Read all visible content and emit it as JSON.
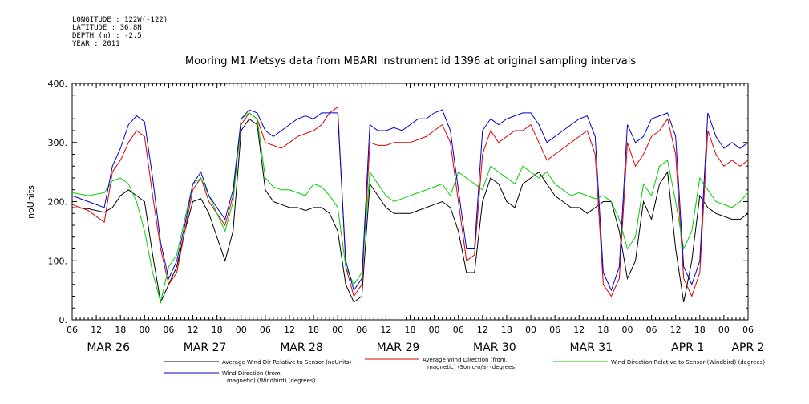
{
  "meta": {
    "longitude": "LONGITUDE : 122W(-122)",
    "latitude": "LATITUDE : 36.8N",
    "depth": "DEPTH (m) : -2.5",
    "year": "YEAR : 2011"
  },
  "chart_data": {
    "type": "line",
    "title": "Mooring M1 Metsys data from MBARI instrument id 1396 at original sampling intervals",
    "ylabel": "noUnits",
    "xlabel": "",
    "ylim": [
      0,
      400
    ],
    "yticks": [
      "0.",
      "100.",
      "200.",
      "300.",
      "400."
    ],
    "ytick_values": [
      0,
      100,
      200,
      300,
      400
    ],
    "xlim_hours": [
      0,
      168
    ],
    "hour_labels": [
      "06",
      "12",
      "18",
      "00",
      "06",
      "12",
      "18",
      "00",
      "06",
      "12",
      "18",
      "00",
      "06",
      "12",
      "18",
      "00",
      "06",
      "12",
      "18",
      "00",
      "06",
      "12",
      "18",
      "00",
      "06",
      "12",
      "18",
      "00",
      "06"
    ],
    "day_labels": [
      {
        "label": "MAR 26",
        "hour": 9
      },
      {
        "label": "MAR 27",
        "hour": 33
      },
      {
        "label": "MAR 28",
        "hour": 57
      },
      {
        "label": "MAR 29",
        "hour": 81
      },
      {
        "label": "MAR 30",
        "hour": 105
      },
      {
        "label": "MAR 31",
        "hour": 129
      },
      {
        "label": "APR  1",
        "hour": 153
      },
      {
        "label": "APR  2",
        "hour": 168
      }
    ],
    "grid": false,
    "series": [
      {
        "name": "Average Wind Dir Relative to Sensor (noUnits)",
        "color": "#000000",
        "x": [
          0,
          4,
          8,
          10,
          12,
          14,
          16,
          18,
          20,
          22,
          24,
          26,
          28,
          30,
          32,
          34,
          36,
          38,
          40,
          42,
          44,
          46,
          48,
          50,
          52,
          54,
          56,
          58,
          60,
          62,
          64,
          66,
          68,
          70,
          72,
          74,
          76,
          78,
          80,
          82,
          84,
          86,
          88,
          90,
          92,
          94,
          96,
          98,
          100,
          102,
          104,
          106,
          108,
          110,
          112,
          114,
          116,
          118,
          120,
          122,
          124,
          126,
          128,
          130,
          132,
          134,
          136,
          138,
          140,
          142,
          144,
          146,
          148,
          150,
          152,
          154,
          156,
          158,
          160,
          162,
          164,
          166,
          168
        ],
        "values": [
          190,
          188,
          182,
          190,
          210,
          220,
          210,
          200,
          110,
          30,
          60,
          90,
          150,
          200,
          205,
          180,
          140,
          100,
          150,
          320,
          340,
          330,
          220,
          200,
          195,
          190,
          190,
          185,
          190,
          190,
          180,
          150,
          60,
          30,
          40,
          230,
          210,
          190,
          180,
          180,
          180,
          185,
          190,
          195,
          200,
          190,
          150,
          80,
          80,
          200,
          240,
          230,
          200,
          190,
          230,
          240,
          250,
          230,
          210,
          200,
          190,
          190,
          180,
          190,
          200,
          200,
          150,
          70,
          100,
          200,
          170,
          230,
          250,
          120,
          30,
          100,
          210,
          190,
          180,
          175,
          170,
          170,
          180
        ]
      },
      {
        "name": "Average Wind Direction (from, magnetic) (Sonic-n/a) (degrees)",
        "color": "#e00000",
        "x": [
          0,
          4,
          8,
          10,
          12,
          14,
          16,
          18,
          20,
          22,
          24,
          26,
          28,
          30,
          32,
          34,
          36,
          38,
          40,
          42,
          44,
          46,
          48,
          50,
          52,
          54,
          56,
          58,
          60,
          62,
          64,
          66,
          68,
          70,
          72,
          74,
          76,
          78,
          80,
          82,
          84,
          86,
          88,
          90,
          92,
          94,
          96,
          98,
          100,
          102,
          104,
          106,
          108,
          110,
          112,
          114,
          116,
          118,
          120,
          122,
          124,
          126,
          128,
          130,
          132,
          134,
          136,
          138,
          140,
          142,
          144,
          146,
          148,
          150,
          152,
          154,
          156,
          158,
          160,
          162,
          164,
          166,
          168
        ],
        "values": [
          195,
          185,
          165,
          250,
          270,
          300,
          320,
          310,
          210,
          120,
          60,
          80,
          150,
          220,
          240,
          200,
          180,
          160,
          210,
          330,
          350,
          340,
          300,
          295,
          290,
          300,
          310,
          315,
          320,
          330,
          350,
          360,
          90,
          40,
          60,
          300,
          295,
          295,
          300,
          300,
          300,
          305,
          310,
          320,
          330,
          300,
          200,
          100,
          110,
          280,
          320,
          300,
          310,
          320,
          320,
          330,
          300,
          270,
          280,
          290,
          300,
          310,
          320,
          280,
          60,
          40,
          70,
          300,
          260,
          280,
          310,
          320,
          340,
          280,
          70,
          40,
          80,
          320,
          280,
          260,
          270,
          260,
          270
        ]
      },
      {
        "name": "Wind Direction Relative to Sensor (Windbird) (degrees)",
        "color": "#00d000",
        "x": [
          0,
          4,
          8,
          10,
          12,
          14,
          16,
          18,
          20,
          22,
          24,
          26,
          28,
          30,
          32,
          34,
          36,
          38,
          40,
          42,
          44,
          46,
          48,
          50,
          52,
          54,
          56,
          58,
          60,
          62,
          64,
          66,
          68,
          70,
          72,
          74,
          76,
          78,
          80,
          82,
          84,
          86,
          88,
          90,
          92,
          94,
          96,
          98,
          100,
          102,
          104,
          106,
          108,
          110,
          112,
          114,
          116,
          118,
          120,
          122,
          124,
          126,
          128,
          130,
          132,
          134,
          136,
          138,
          140,
          142,
          144,
          146,
          148,
          150,
          152,
          154,
          156,
          158,
          160,
          162,
          164,
          166,
          168
        ],
        "values": [
          215,
          210,
          215,
          235,
          240,
          230,
          200,
          150,
          80,
          30,
          90,
          110,
          170,
          230,
          240,
          210,
          180,
          150,
          200,
          340,
          350,
          340,
          240,
          225,
          220,
          220,
          215,
          210,
          230,
          225,
          210,
          190,
          90,
          60,
          80,
          250,
          230,
          210,
          200,
          205,
          210,
          215,
          220,
          225,
          230,
          210,
          250,
          240,
          230,
          220,
          260,
          250,
          240,
          230,
          260,
          250,
          240,
          250,
          230,
          220,
          210,
          215,
          210,
          205,
          210,
          200,
          170,
          120,
          140,
          230,
          210,
          260,
          270,
          200,
          120,
          150,
          240,
          220,
          200,
          195,
          190,
          200,
          215
        ]
      },
      {
        "name": "Wind Direction (from, magnetic) (Windbird) (degrees)",
        "color": "#0000d0",
        "x": [
          0,
          4,
          8,
          10,
          12,
          14,
          16,
          18,
          20,
          22,
          24,
          26,
          28,
          30,
          32,
          34,
          36,
          38,
          40,
          42,
          44,
          46,
          48,
          50,
          52,
          54,
          56,
          58,
          60,
          62,
          64,
          66,
          68,
          70,
          72,
          74,
          76,
          78,
          80,
          82,
          84,
          86,
          88,
          90,
          92,
          94,
          96,
          98,
          100,
          102,
          104,
          106,
          108,
          110,
          112,
          114,
          116,
          118,
          120,
          122,
          124,
          126,
          128,
          130,
          132,
          134,
          136,
          138,
          140,
          142,
          144,
          146,
          148,
          150,
          152,
          154,
          156,
          158,
          160,
          162,
          164,
          166,
          168
        ],
        "values": [
          210,
          200,
          190,
          260,
          290,
          330,
          345,
          335,
          240,
          130,
          70,
          100,
          160,
          230,
          250,
          210,
          190,
          170,
          220,
          340,
          355,
          350,
          320,
          310,
          320,
          330,
          340,
          345,
          340,
          350,
          350,
          350,
          100,
          50,
          70,
          330,
          320,
          320,
          325,
          320,
          330,
          340,
          340,
          350,
          355,
          320,
          220,
          120,
          120,
          320,
          340,
          330,
          340,
          345,
          350,
          350,
          330,
          300,
          310,
          320,
          330,
          340,
          345,
          310,
          80,
          50,
          90,
          330,
          300,
          310,
          340,
          345,
          350,
          310,
          90,
          60,
          100,
          350,
          310,
          290,
          300,
          290,
          300
        ]
      }
    ],
    "legend": [
      {
        "label": "Average Wind Dir Relative to Sensor (noUnits)",
        "line2": "",
        "color": "#000000"
      },
      {
        "label": "Average Wind Direction (from,",
        "line2": "magnetic) (Sonic-n/a) (degrees)",
        "color": "#e00000"
      },
      {
        "label": "Wind Direction Relative to Sensor (Windbird) (degrees)",
        "line2": "",
        "color": "#00d000"
      },
      {
        "label": "Wind Direction (from,",
        "line2": "magnetic) (Windbird) (degrees)",
        "color": "#0000d0"
      }
    ]
  }
}
